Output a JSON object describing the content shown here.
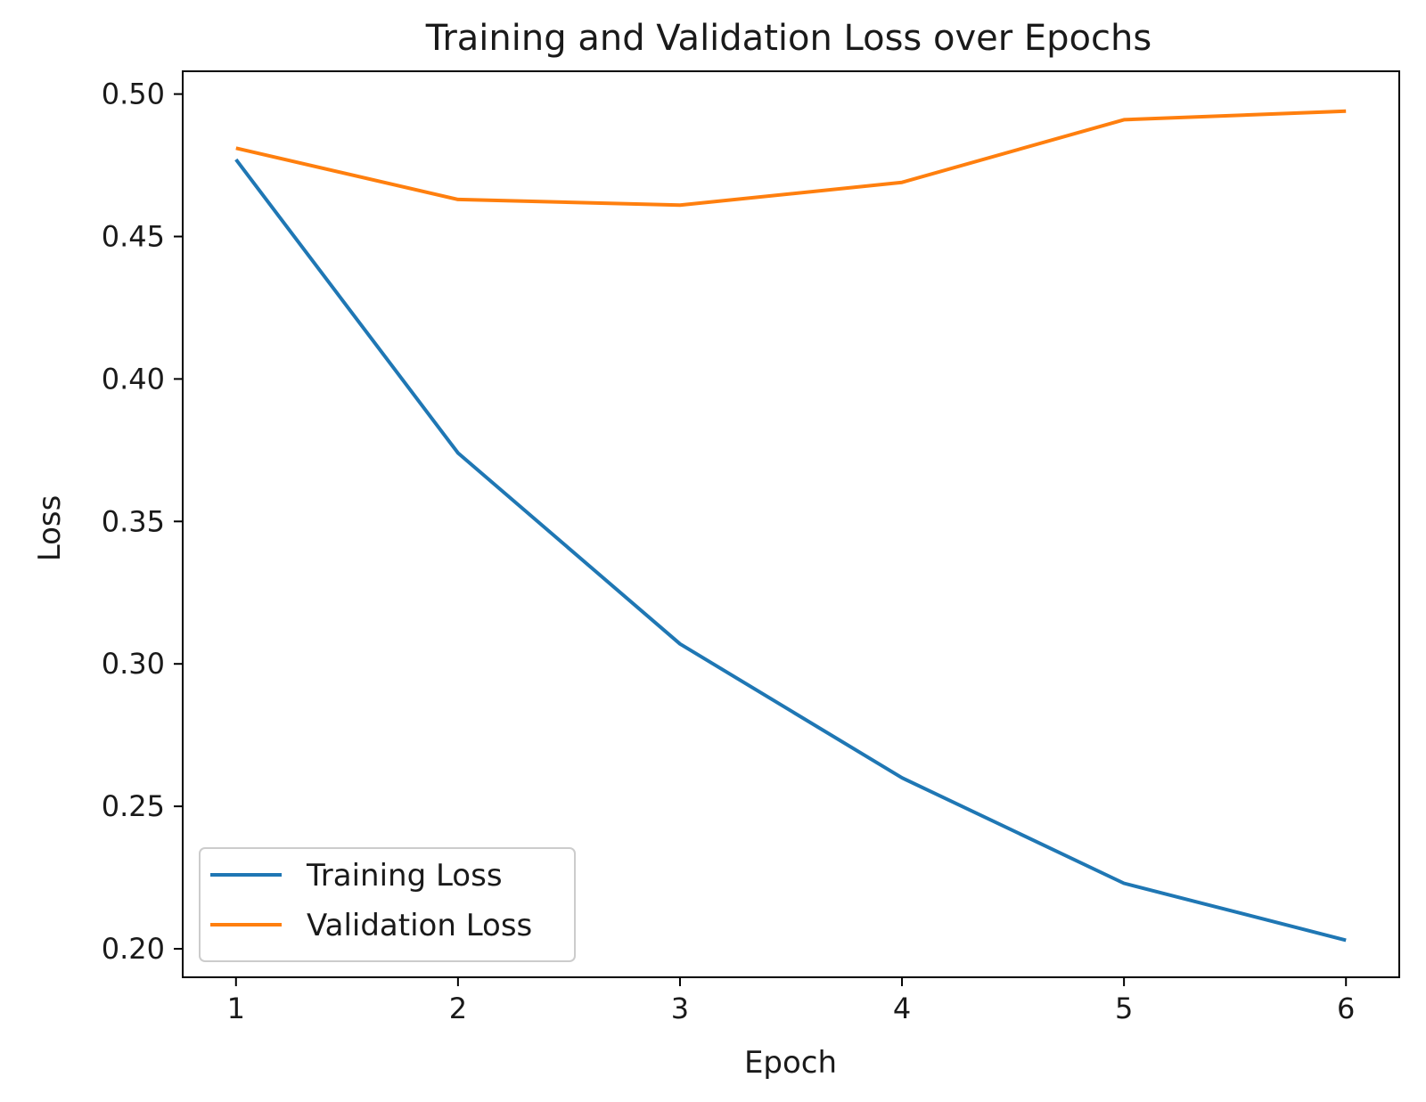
{
  "chart_data": {
    "type": "line",
    "title": "Training and Validation Loss over Epochs",
    "xlabel": "Epoch",
    "ylabel": "Loss",
    "x": [
      1,
      2,
      3,
      4,
      5,
      6
    ],
    "xlim": [
      0.76,
      6.24
    ],
    "ylim": [
      0.19,
      0.508
    ],
    "xticks": [
      "1",
      "2",
      "3",
      "4",
      "5",
      "6"
    ],
    "yticks": [
      "0.20",
      "0.25",
      "0.30",
      "0.35",
      "0.40",
      "0.45",
      "0.50"
    ],
    "grid": false,
    "legend_position": "lower-left",
    "series": [
      {
        "name": "Training Loss",
        "color": "#1f77b4",
        "values": [
          0.477,
          0.374,
          0.307,
          0.26,
          0.223,
          0.203
        ]
      },
      {
        "name": "Validation Loss",
        "color": "#ff7f0e",
        "values": [
          0.481,
          0.463,
          0.461,
          0.469,
          0.491,
          0.494
        ]
      }
    ]
  }
}
